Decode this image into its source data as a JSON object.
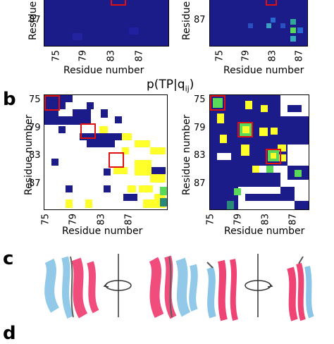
{
  "panel_a": {
    "ytick": "87",
    "xticks": [
      "75",
      "79",
      "83",
      "87"
    ],
    "xlabel": "Residue number",
    "ylabel": "Residue"
  },
  "panel_b": {
    "letter": "b",
    "title": "p(TP|q",
    "title_sub": "ij",
    "title_close": ")",
    "yticks": [
      "75",
      "79",
      "83",
      "87"
    ],
    "xticks": [
      "75",
      "79",
      "83",
      "87"
    ],
    "xlabel": "Residue number",
    "ylabel": "Residue number"
  },
  "panel_c": {
    "letter": "c"
  },
  "panel_d": {
    "letter": "d"
  },
  "colors": {
    "navy": "#1b1b8a",
    "yellow": "#ffff2a",
    "green": "#5ad85a",
    "teal": "#2a8a7a",
    "red_box": "#e01010",
    "helix_blue": "#7fc0e6",
    "helix_pink": "#ee2f66"
  }
}
